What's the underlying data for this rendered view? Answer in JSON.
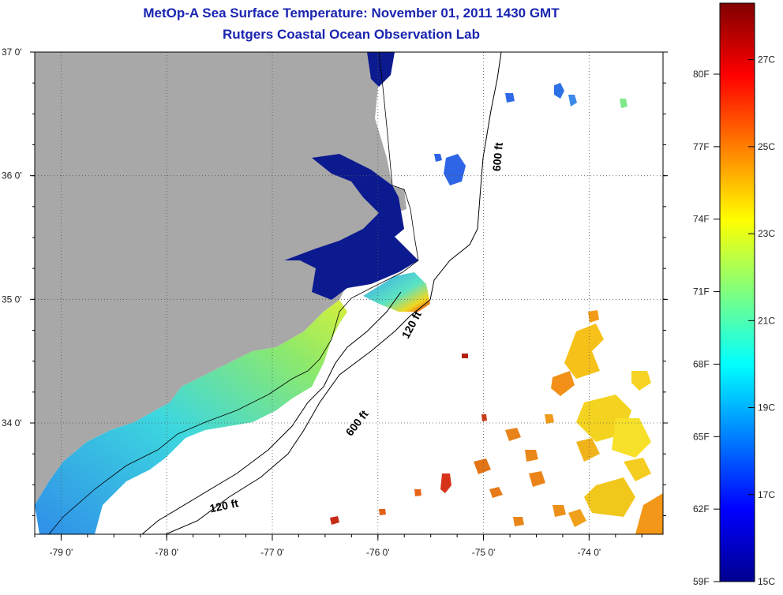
{
  "title": "MetOp-A Sea Surface Temperature:  November 01, 2011 1430 GMT",
  "subtitle": "Rutgers Coastal Ocean Observation Lab",
  "colors": {
    "land": "#a8a8a8",
    "title": "#1a24b0",
    "cloud": "#ffffff"
  },
  "map": {
    "lon_range": [
      -79.25,
      -73.3
    ],
    "lat_range": [
      33.1,
      37.0
    ],
    "lon_ticks": [
      {
        "value": -79,
        "label": "-79 0'"
      },
      {
        "value": -78,
        "label": "-78 0'"
      },
      {
        "value": -77,
        "label": "-77 0'"
      },
      {
        "value": -76,
        "label": "-76 0'"
      },
      {
        "value": -75,
        "label": "-75 0'"
      },
      {
        "value": -74,
        "label": "-74 0'"
      }
    ],
    "lat_ticks": [
      {
        "value": 37,
        "label": "37 0'"
      },
      {
        "value": 36,
        "label": "36 0'"
      },
      {
        "value": 35,
        "label": "35 0'"
      },
      {
        "value": 34,
        "label": "34 0'"
      }
    ],
    "contour_labels": [
      {
        "text": "600 ft",
        "lon": -74.83,
        "lat": 36.15,
        "angle": -85
      },
      {
        "text": "120 ft",
        "lon": -75.65,
        "lat": 34.78,
        "angle": -62
      },
      {
        "text": "600 ft",
        "lon": -76.17,
        "lat": 33.98,
        "angle": -52
      },
      {
        "text": "120 ft",
        "lon": -77.45,
        "lat": 33.3,
        "angle": -12
      }
    ]
  },
  "colorbar": {
    "celsius_min": 15,
    "celsius_max": 28.3,
    "fahrenheit_labels": [
      "80F",
      "77F",
      "74F",
      "71F",
      "68F",
      "65F",
      "62F",
      "59F"
    ],
    "fahrenheit_values": [
      80,
      77,
      74,
      71,
      68,
      65,
      62,
      59
    ],
    "celsius_labels": [
      "27C",
      "25C",
      "23C",
      "21C",
      "19C",
      "17C",
      "15C"
    ],
    "celsius_values": [
      27,
      25,
      23,
      21,
      19,
      17,
      15
    ]
  }
}
